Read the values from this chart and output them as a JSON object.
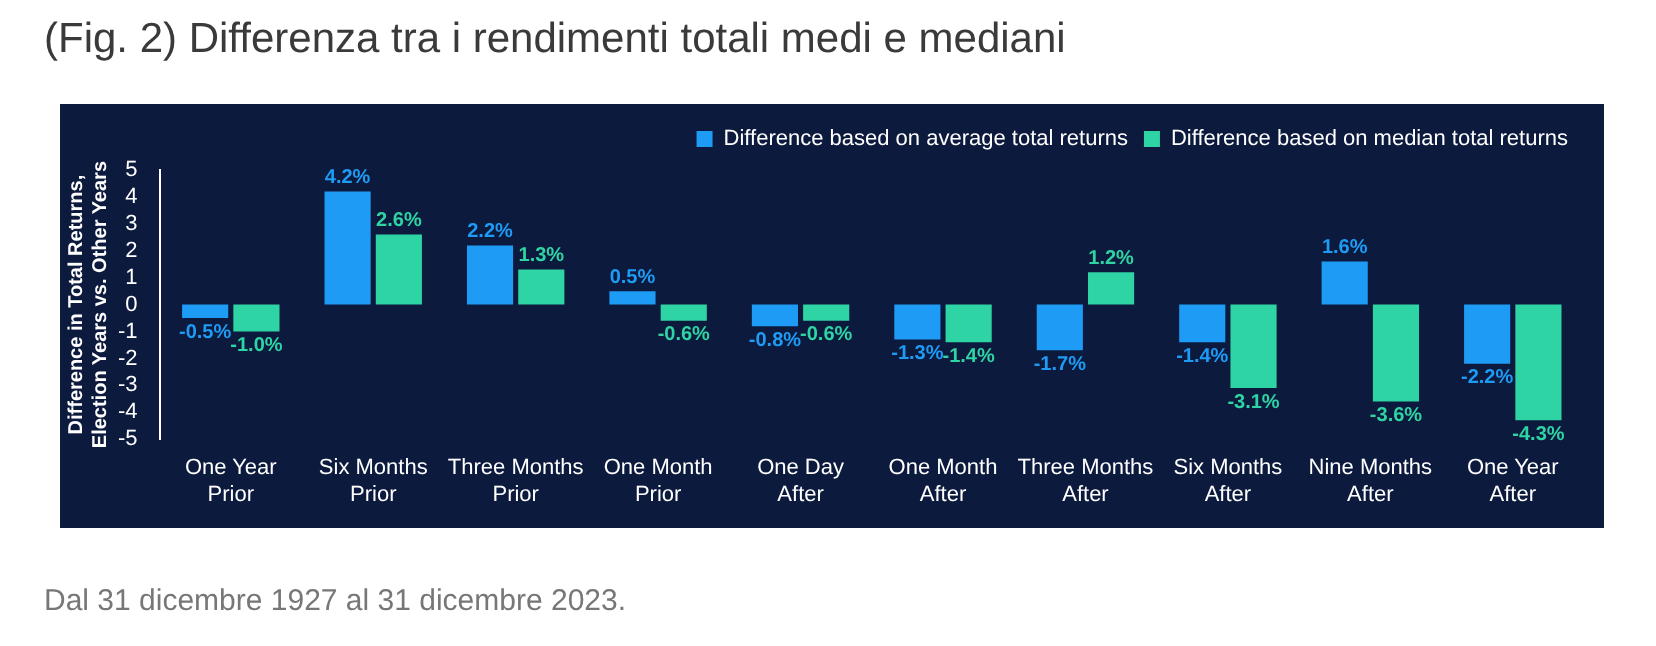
{
  "chart_data": {
    "type": "bar",
    "title": "(Fig. 2) Differenza tra i rendimenti totali medi e mediani",
    "ylabel": "Difference in Total Returns, Election Years vs. Other Years",
    "annotations": [
      "Dal 31 dicembre 1927 al 31 dicembre 2023."
    ],
    "categories": [
      "One Year Prior",
      "Six Months Prior",
      "Three Months Prior",
      "One Month Prior",
      "One Day After",
      "One Month After",
      "Three Months After",
      "Six Months After",
      "Nine Months After",
      "One Year After"
    ],
    "series": [
      {
        "name": "Difference based on average total returns",
        "color": "#1e9bf5",
        "values": [
          -0.5,
          4.2,
          2.2,
          0.5,
          -0.8,
          -1.3,
          -1.7,
          -1.4,
          1.6,
          -2.2
        ],
        "value_labels": [
          "-0.5%",
          "4.2%",
          "2.2%",
          "0.5%",
          "-0.8%",
          "-1.3%",
          "-1.7%",
          "-1.4%",
          "1.6%",
          "-2.2%"
        ]
      },
      {
        "name": "Difference based on median total returns",
        "color": "#2fd4a4",
        "values": [
          -1.0,
          2.6,
          1.3,
          -0.6,
          -0.6,
          -1.4,
          1.2,
          -3.1,
          -3.6,
          -4.3
        ],
        "value_labels": [
          "-1.0%",
          "2.6%",
          "1.3%",
          "-0.6%",
          "-0.6%",
          "-1.4%",
          "1.2%",
          "-3.1%",
          "-3.6%",
          "-4.3%"
        ]
      }
    ],
    "ylim": [
      -5,
      5
    ],
    "yticks": [
      -5,
      -4,
      -3,
      -2,
      -1,
      0,
      1,
      2,
      3,
      4,
      5
    ],
    "grid": false,
    "legend": "top right"
  }
}
